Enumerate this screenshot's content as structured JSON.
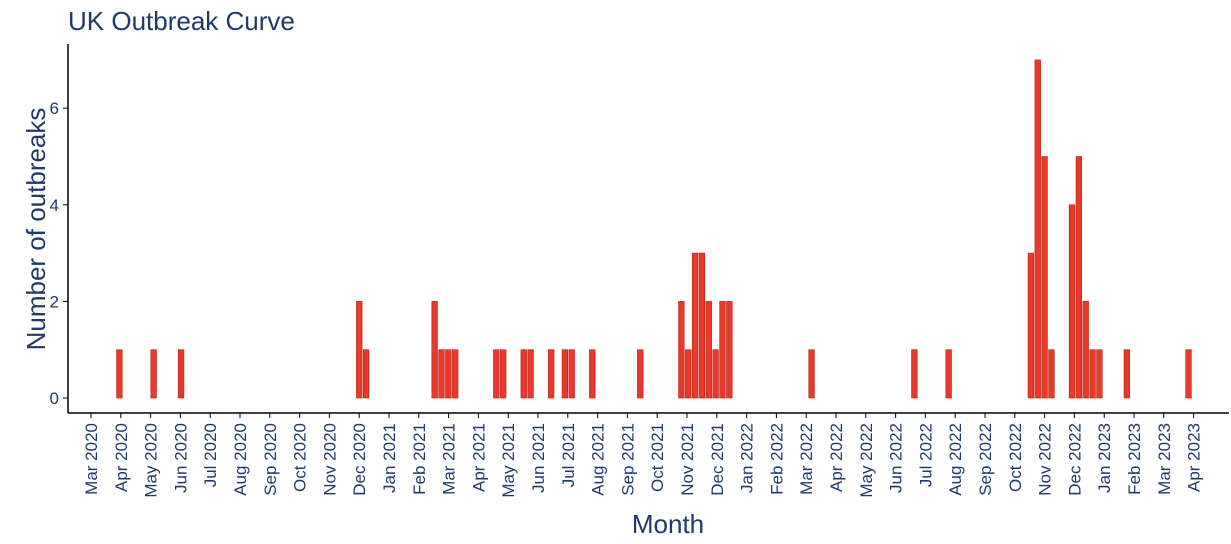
{
  "chart_data": {
    "type": "bar",
    "title": "UK Outbreak Curve",
    "xlabel": "Month",
    "ylabel": "Number of outbreaks",
    "ylim": [
      0,
      7.3
    ],
    "yticks": [
      0,
      2,
      4,
      6
    ],
    "grid": false,
    "colors": {
      "bar": "#e8392b",
      "bar_edge": "#b42015",
      "text": "#1f3a68",
      "axis": "#000000"
    },
    "months": [
      "Mar 2020",
      "Apr 2020",
      "May 2020",
      "Jun 2020",
      "Jul 2020",
      "Aug 2020",
      "Sep 2020",
      "Oct 2020",
      "Nov 2020",
      "Dec 2020",
      "Jan 2021",
      "Feb 2021",
      "Mar 2021",
      "Apr 2021",
      "May 2021",
      "Jun 2021",
      "Jul 2021",
      "Aug 2021",
      "Sep 2021",
      "Oct 2021",
      "Nov 2021",
      "Dec 2021",
      "Jan 2022",
      "Feb 2022",
      "Mar 2022",
      "Apr 2022",
      "May 2022",
      "Jun 2022",
      "Jul 2022",
      "Aug 2022",
      "Sep 2022",
      "Oct 2022",
      "Nov 2022",
      "Dec 2022",
      "Jan 2023",
      "Feb 2023",
      "Mar 2023",
      "Apr 2023"
    ],
    "x": [
      "2020-03-30",
      "2020-05-04",
      "2020-06-01",
      "2020-11-30",
      "2020-12-07",
      "2021-02-15",
      "2021-02-22",
      "2021-03-01",
      "2021-03-08",
      "2021-04-19",
      "2021-04-26",
      "2021-05-17",
      "2021-05-24",
      "2021-06-14",
      "2021-06-28",
      "2021-07-05",
      "2021-07-26",
      "2021-09-13",
      "2021-10-25",
      "2021-11-01",
      "2021-11-08",
      "2021-11-15",
      "2021-11-22",
      "2021-11-29",
      "2021-12-06",
      "2021-12-13",
      "2022-03-07",
      "2022-06-20",
      "2022-07-25",
      "2022-10-17",
      "2022-10-24",
      "2022-10-31",
      "2022-11-07",
      "2022-11-28",
      "2022-12-05",
      "2022-12-12",
      "2022-12-19",
      "2022-12-26",
      "2023-01-23",
      "2023-03-27"
    ],
    "values": [
      1,
      1,
      1,
      2,
      1,
      2,
      1,
      1,
      1,
      1,
      1,
      1,
      1,
      1,
      1,
      1,
      1,
      1,
      2,
      1,
      3,
      3,
      2,
      1,
      2,
      2,
      1,
      1,
      1,
      3,
      7,
      5,
      1,
      4,
      5,
      2,
      1,
      1,
      1,
      1
    ]
  }
}
